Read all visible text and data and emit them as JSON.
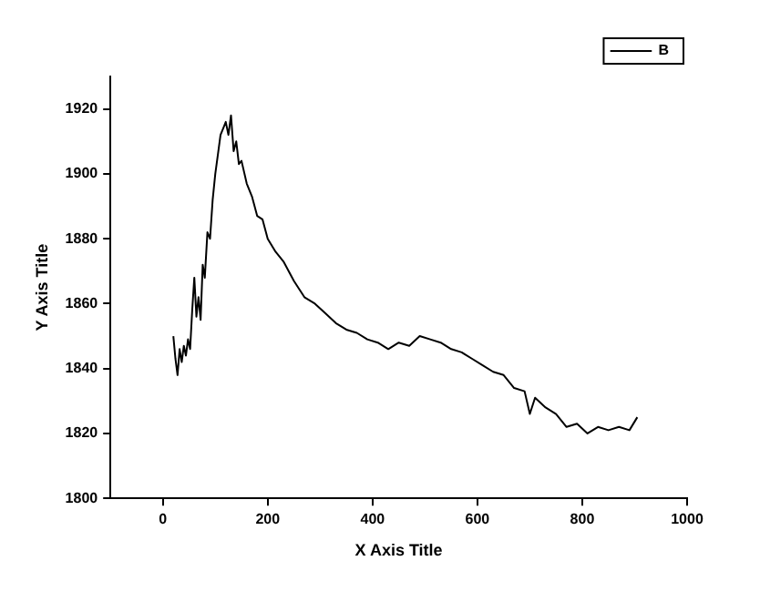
{
  "chart_data": {
    "type": "line",
    "xlabel": "X Axis Title",
    "ylabel": "Y Axis Title",
    "xlim": [
      -100,
      1000
    ],
    "xticks": [
      0,
      200,
      400,
      600,
      800,
      1000
    ],
    "ylim": [
      1800,
      1930
    ],
    "yticks": [
      1800,
      1820,
      1840,
      1860,
      1880,
      1900,
      1920
    ],
    "grid": false,
    "legend": "top right",
    "marker": "none",
    "line_style": "solid",
    "x": [
      20,
      24,
      28,
      32,
      36,
      40,
      44,
      48,
      52,
      56,
      60,
      64,
      68,
      72,
      76,
      80,
      85,
      90,
      95,
      100,
      105,
      110,
      115,
      120,
      125,
      130,
      135,
      140,
      145,
      150,
      160,
      170,
      180,
      190,
      200,
      215,
      230,
      250,
      270,
      290,
      310,
      330,
      350,
      370,
      390,
      410,
      430,
      450,
      470,
      490,
      510,
      530,
      550,
      570,
      590,
      610,
      630,
      650,
      670,
      690,
      700,
      710,
      730,
      750,
      770,
      790,
      810,
      830,
      850,
      870,
      890,
      905
    ],
    "series": [
      {
        "name": "B",
        "color": "#000000",
        "values": [
          1850,
          1843,
          1838,
          1846,
          1842,
          1847,
          1844,
          1849,
          1846,
          1858,
          1868,
          1856,
          1862,
          1855,
          1872,
          1868,
          1882,
          1880,
          1892,
          1900,
          1906,
          1912,
          1914,
          1916,
          1912,
          1918,
          1907,
          1910,
          1903,
          1904,
          1897,
          1893,
          1887,
          1886,
          1880,
          1876,
          1873,
          1867,
          1862,
          1860,
          1857,
          1854,
          1852,
          1851,
          1849,
          1848,
          1846,
          1848,
          1847,
          1850,
          1849,
          1848,
          1846,
          1845,
          1843,
          1841,
          1839,
          1838,
          1834,
          1833,
          1826,
          1831,
          1828,
          1826,
          1822,
          1823,
          1820,
          1822,
          1821,
          1822,
          1821,
          1825
        ]
      }
    ]
  }
}
